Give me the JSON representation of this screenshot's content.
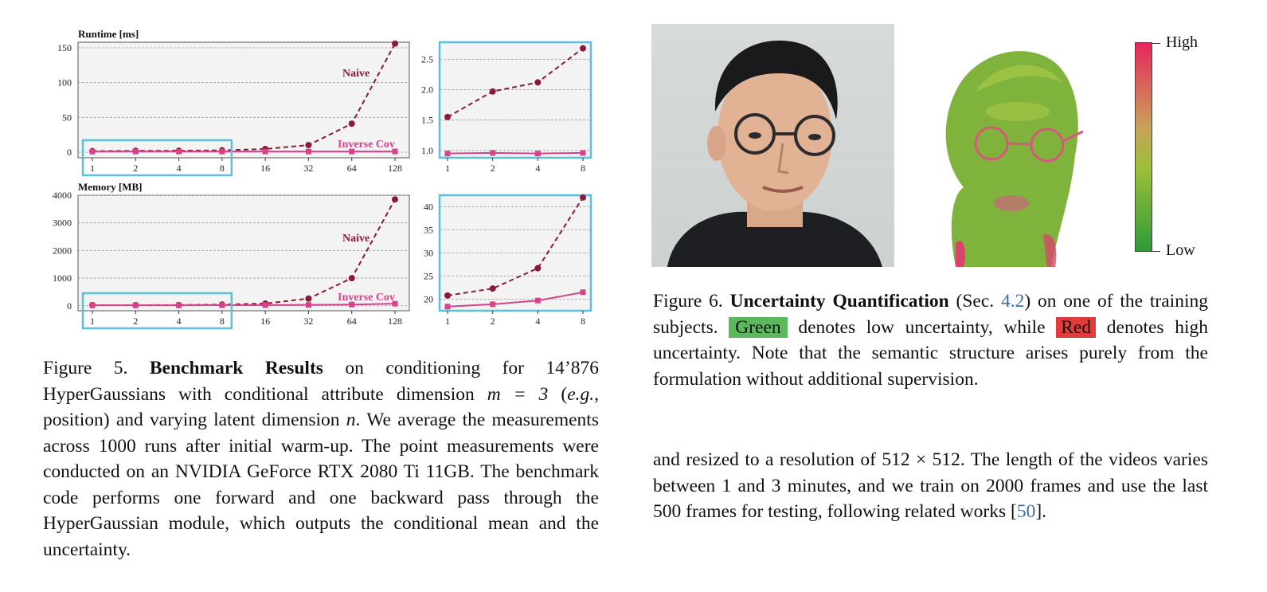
{
  "figure5": {
    "charts": [
      {
        "id": "runtime-main",
        "type": "line",
        "title": "Runtime [ms]",
        "categories": [
          "1",
          "2",
          "4",
          "8",
          "16",
          "32",
          "64",
          "128"
        ],
        "yticks": [
          0,
          50,
          100,
          150
        ],
        "ylim": [
          -8,
          158
        ],
        "series": [
          {
            "name": "Naive",
            "values": [
              1.55,
              1.97,
              2.12,
              2.68,
              4.6,
              10.2,
              41.0,
              156.0
            ],
            "color": "#8b1a3a",
            "dashed": true,
            "marker": "circle"
          },
          {
            "name": "Inverse Cov",
            "values": [
              0.95,
              0.96,
              0.95,
              0.96,
              0.97,
              0.98,
              1.0,
              1.05
            ],
            "color": "#d6438a",
            "dashed": false,
            "marker": "square"
          }
        ],
        "highlight_range": [
          0,
          3
        ]
      },
      {
        "id": "runtime-inset",
        "type": "line",
        "categories": [
          "1",
          "2",
          "4",
          "8"
        ],
        "yticks": [
          1.0,
          1.5,
          2.0,
          2.5
        ],
        "ylim": [
          0.88,
          2.78
        ],
        "series": [
          {
            "values": [
              1.55,
              1.97,
              2.12,
              2.68
            ],
            "color": "#8b1a3a",
            "dashed": true,
            "marker": "circle"
          },
          {
            "values": [
              0.95,
              0.96,
              0.95,
              0.96
            ],
            "color": "#d6438a",
            "dashed": false,
            "marker": "square"
          }
        ]
      },
      {
        "id": "memory-main",
        "type": "line",
        "title": "Memory [MB]",
        "categories": [
          "1",
          "2",
          "4",
          "8",
          "16",
          "32",
          "64",
          "128"
        ],
        "yticks": [
          0,
          1000,
          2000,
          3000,
          4000
        ],
        "ylim": [
          -180,
          4000
        ],
        "series": [
          {
            "name": "Naive",
            "values": [
              20.8,
              22.3,
              26.7,
              42.0,
              80.0,
              260.0,
              1000.0,
              3850.0
            ],
            "color": "#8b1a3a",
            "dashed": true,
            "marker": "circle"
          },
          {
            "name": "Inverse Cov",
            "values": [
              18.4,
              18.9,
              19.7,
              21.5,
              25.0,
              32.0,
              45.0,
              75.0
            ],
            "color": "#d6438a",
            "dashed": false,
            "marker": "square"
          }
        ],
        "highlight_range": [
          0,
          3
        ]
      },
      {
        "id": "memory-inset",
        "type": "line",
        "categories": [
          "1",
          "2",
          "4",
          "8"
        ],
        "yticks": [
          20,
          25,
          30,
          35,
          40
        ],
        "ylim": [
          17.5,
          42.5
        ],
        "series": [
          {
            "values": [
              20.8,
              22.3,
              26.7,
              42.0
            ],
            "color": "#8b1a3a",
            "dashed": true,
            "marker": "circle"
          },
          {
            "values": [
              18.4,
              18.9,
              19.7,
              21.5
            ],
            "color": "#d6438a",
            "dashed": false,
            "marker": "square"
          }
        ]
      }
    ],
    "caption": {
      "prefix": "Figure 5. ",
      "bold": "Benchmark Results",
      "t1": " on conditioning for 14’876 HyperGaussians with conditional attribute dimension ",
      "math1": "m = 3",
      "t2": " (",
      "italic": "e.g.",
      "t3": ", position) and varying latent dimension ",
      "math2": "n",
      "t4": ". We average the measurements across 1000 runs after initial warm-up. The point measurements were conducted on an NVIDIA GeForce RTX 2080 Ti 11GB. The benchmark code performs one forward and one backward pass through the HyperGaussian module, which outputs the conditional mean and the uncertainty."
    }
  },
  "figure6": {
    "colorbar": {
      "high": "High",
      "low": "Low"
    },
    "caption": {
      "prefix": "Figure 6. ",
      "bold": "Uncertainty Quantification",
      "t1": " (Sec. ",
      "ref": "4.2",
      "t2": ") on one of the training subjects. ",
      "green": "Green",
      "t3": " denotes low uncertainty, while ",
      "red": "Red",
      "t4": " denotes high uncertainty. Note that the semantic structure arises purely from the formulation without additional supervision."
    }
  },
  "body": {
    "t1": "and resized to a resolution of 512 × 512. The length of the videos varies between 1 and 3 minutes, and we train on 2000 frames and use the last 500 frames for testing, following related works [",
    "ref": "50",
    "t2": "]."
  }
}
